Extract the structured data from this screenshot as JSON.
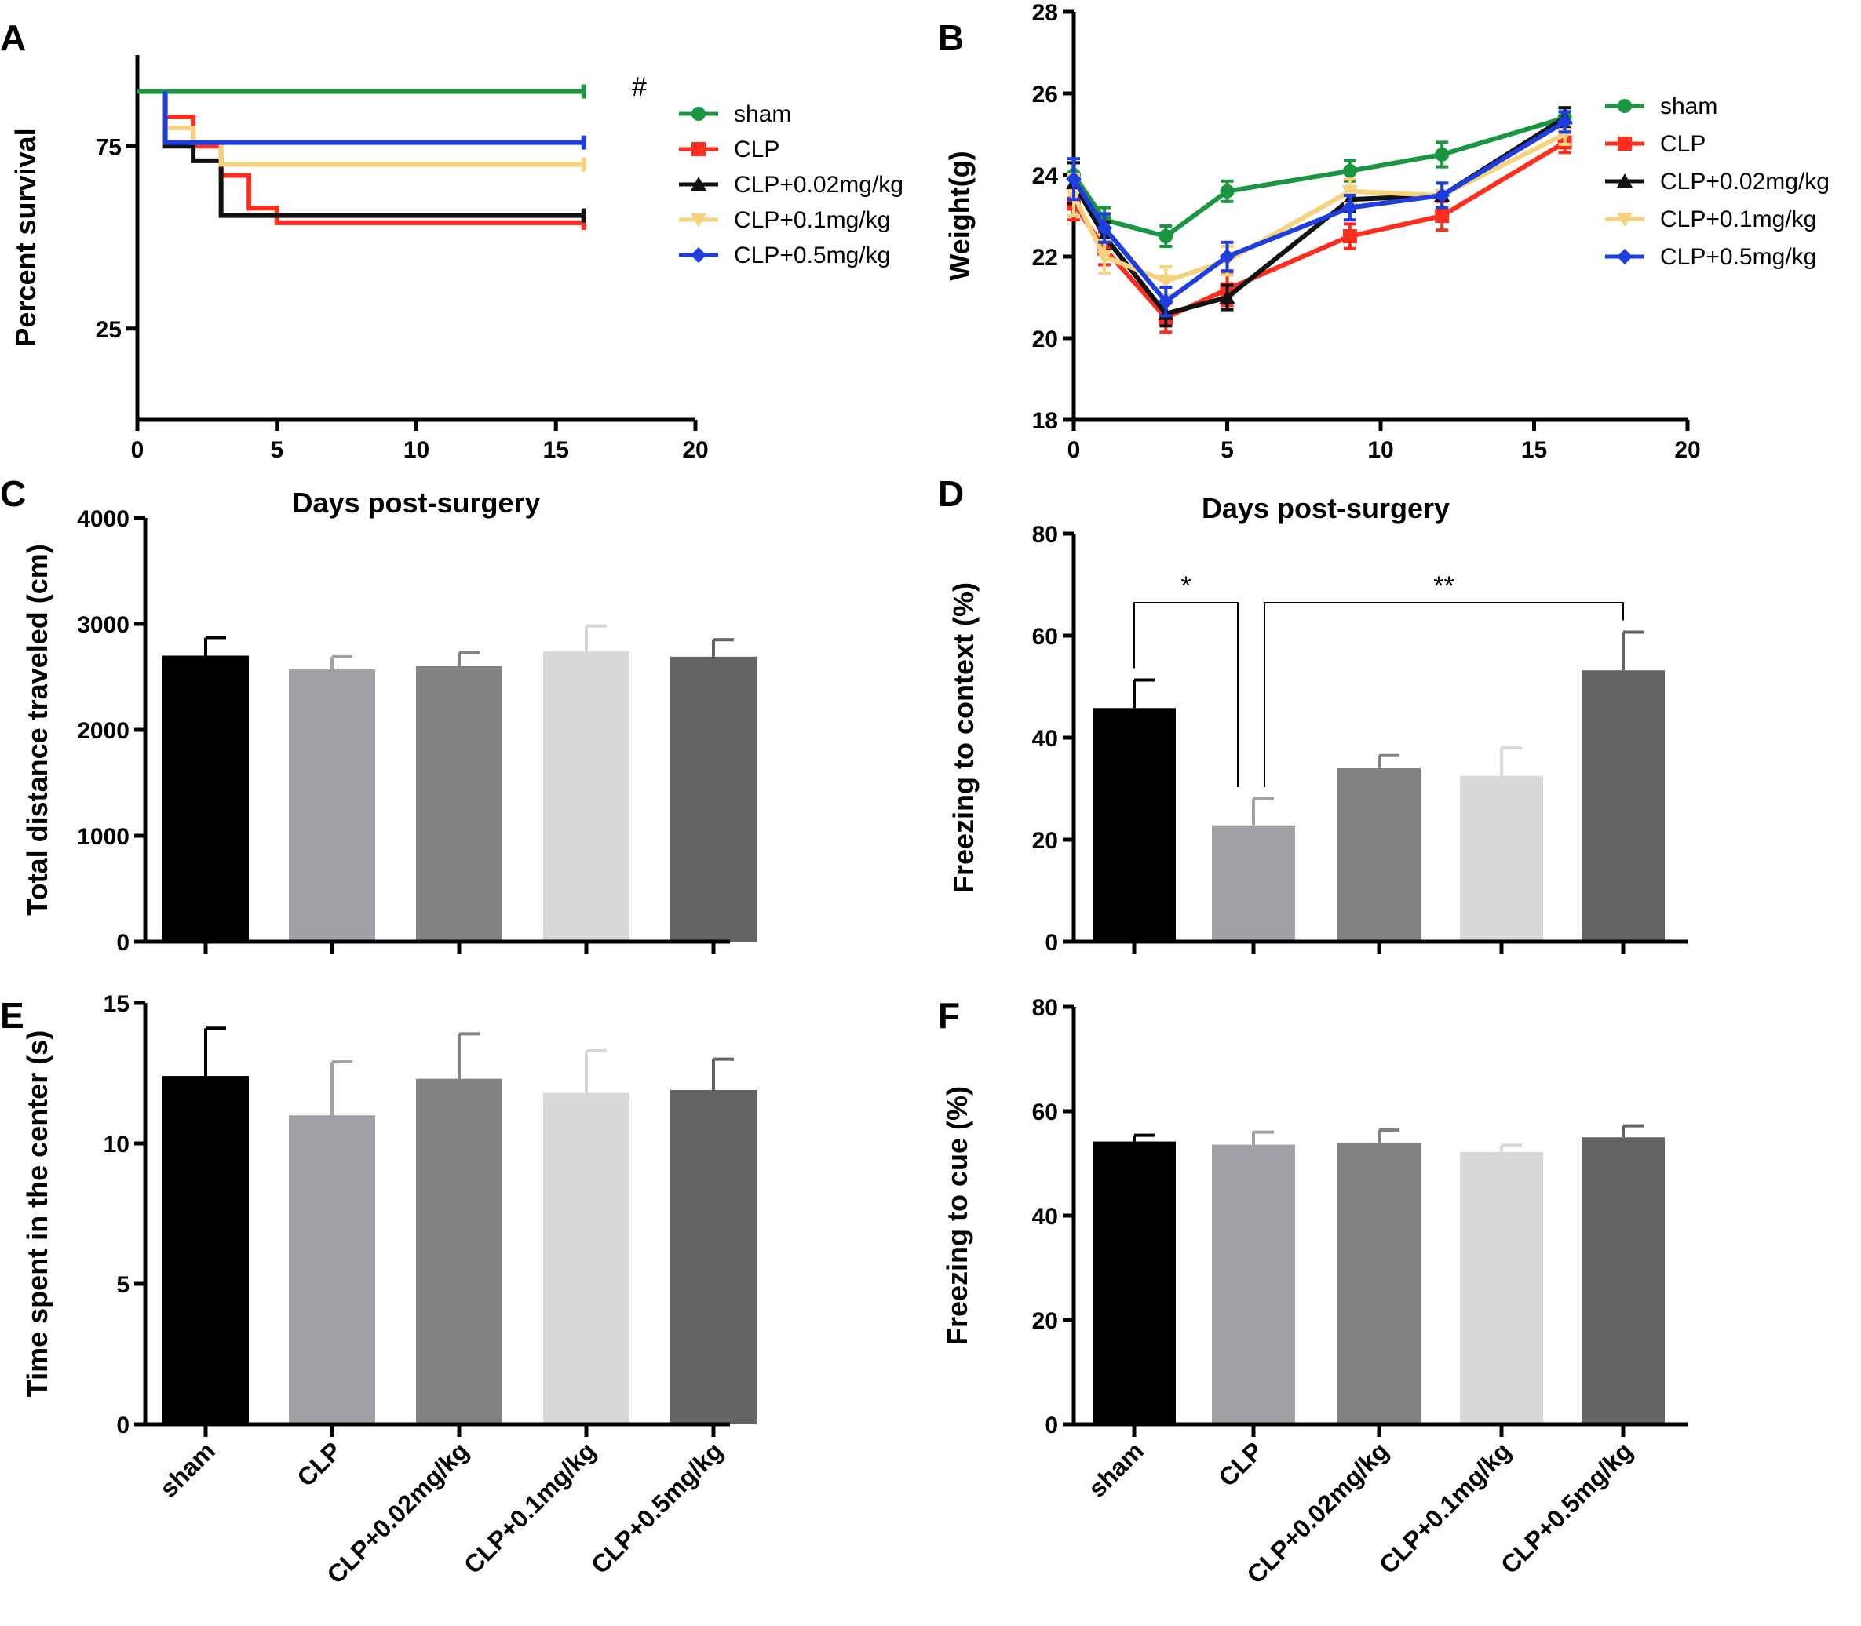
{
  "chart_data": [
    {
      "panel": "A",
      "type": "line",
      "subtype": "kaplan-meier survival",
      "xlabel": "Days post-surgery",
      "ylabel": "Percent survival",
      "xlim": [
        0,
        20
      ],
      "ylim": [
        0,
        100
      ],
      "xticks": [
        "0",
        "5",
        "10",
        "15",
        "20"
      ],
      "yticks": [
        {
          "value": 25,
          "label": "25"
        },
        {
          "value": 75,
          "label": "75"
        }
      ],
      "annotation": "#",
      "series": [
        {
          "name": "sham",
          "color": "#1a9641",
          "marker": "circle",
          "steps": [
            [
              0,
              90
            ],
            [
              16,
              90
            ]
          ]
        },
        {
          "name": "CLP",
          "color": "#ff2d1e",
          "marker": "square",
          "steps": [
            [
              1,
              90
            ],
            [
              1,
              83
            ],
            [
              2,
              83
            ],
            [
              2,
              75
            ],
            [
              3,
              75
            ],
            [
              3,
              67
            ],
            [
              4,
              67
            ],
            [
              4,
              58
            ],
            [
              5,
              58
            ],
            [
              5,
              54
            ],
            [
              16,
              54
            ]
          ]
        },
        {
          "name": "CLP+0.02mg/kg",
          "color": "#111111",
          "marker": "triangle",
          "steps": [
            [
              1,
              90
            ],
            [
              1,
              75
            ],
            [
              2,
              75
            ],
            [
              2,
              71
            ],
            [
              3,
              71
            ],
            [
              3,
              56
            ],
            [
              6,
              56
            ],
            [
              16,
              56
            ]
          ]
        },
        {
          "name": "CLP+0.1mg/kg",
          "color": "#f7d27c",
          "marker": "triangle-down",
          "steps": [
            [
              1,
              90
            ],
            [
              1,
              80
            ],
            [
              2,
              80
            ],
            [
              2,
              76
            ],
            [
              3,
              76
            ],
            [
              3,
              70
            ],
            [
              16,
              70
            ]
          ]
        },
        {
          "name": "CLP+0.5mg/kg",
          "color": "#1f3ee0",
          "marker": "diamond",
          "steps": [
            [
              1,
              90
            ],
            [
              1,
              76
            ],
            [
              16,
              76
            ]
          ]
        }
      ]
    },
    {
      "panel": "B",
      "type": "line",
      "xlabel": "Days post-surgery",
      "ylabel": "Weight(g)",
      "xlim": [
        0,
        20
      ],
      "ylim": [
        18,
        28
      ],
      "xticks": [
        "0",
        "5",
        "10",
        "15",
        "20"
      ],
      "yticks": [
        "18",
        "20",
        "22",
        "24",
        "26",
        "28"
      ],
      "x": [
        0,
        1,
        3,
        5,
        9,
        12,
        16
      ],
      "series": [
        {
          "name": "sham",
          "color": "#1a9641",
          "marker": "circle",
          "values": [
            24.0,
            22.9,
            22.5,
            23.6,
            24.1,
            24.5,
            25.4
          ],
          "errors": [
            0.3,
            0.3,
            0.25,
            0.25,
            0.25,
            0.3,
            0.25
          ]
        },
        {
          "name": "CLP",
          "color": "#ff2d1e",
          "marker": "square",
          "values": [
            23.3,
            22.2,
            20.5,
            21.2,
            22.5,
            23.0,
            24.8
          ],
          "errors": [
            0.4,
            0.4,
            0.35,
            0.4,
            0.3,
            0.35,
            0.25
          ]
        },
        {
          "name": "CLP+0.02mg/kg",
          "color": "#111111",
          "marker": "triangle",
          "values": [
            23.8,
            22.5,
            20.6,
            21.0,
            23.4,
            23.5,
            25.4
          ],
          "errors": [
            0.5,
            0.35,
            0.3,
            0.3,
            0.3,
            0.3,
            0.25
          ]
        },
        {
          "name": "CLP+0.1mg/kg",
          "color": "#f7d27c",
          "marker": "triangle-down",
          "values": [
            23.5,
            22.0,
            21.4,
            21.9,
            23.6,
            23.5,
            25.0
          ],
          "errors": [
            0.5,
            0.4,
            0.35,
            0.35,
            0.3,
            0.3,
            0.25
          ]
        },
        {
          "name": "CLP+0.5mg/kg",
          "color": "#1f3ee0",
          "marker": "diamond",
          "values": [
            23.9,
            22.7,
            20.9,
            22.0,
            23.2,
            23.5,
            25.3
          ],
          "errors": [
            0.5,
            0.35,
            0.35,
            0.35,
            0.3,
            0.3,
            0.25
          ]
        }
      ]
    },
    {
      "panel": "C",
      "type": "bar",
      "ylabel": "Total distance traveled (cm)",
      "ylim": [
        0,
        4000
      ],
      "yticks": [
        "0",
        "1000",
        "2000",
        "3000",
        "4000"
      ],
      "categories": [
        "sham",
        "CLP",
        "CLP+0.02mg/kg",
        "CLP+0.1mg/kg",
        "CLP+0.5mg/kg"
      ],
      "values": [
        2700,
        2570,
        2600,
        2740,
        2690
      ],
      "errors": [
        170,
        120,
        130,
        240,
        160
      ]
    },
    {
      "panel": "D",
      "type": "bar",
      "ylabel": "Freezing to context (%)",
      "ylim": [
        0,
        80
      ],
      "yticks": [
        "0",
        "20",
        "40",
        "60",
        "80"
      ],
      "categories": [
        "sham",
        "CLP",
        "CLP+0.02mg/kg",
        "CLP+0.1mg/kg",
        "CLP+0.5mg/kg"
      ],
      "values": [
        45.8,
        22.8,
        34.0,
        32.5,
        53.2
      ],
      "errors": [
        5.5,
        5.2,
        2.5,
        5.5,
        7.5
      ],
      "significance": [
        {
          "from": 0,
          "to": 1,
          "label": "*"
        },
        {
          "from": 1,
          "to": 4,
          "label": "**"
        }
      ]
    },
    {
      "panel": "E",
      "type": "bar",
      "ylabel": "Time spent in the center (s)",
      "ylim": [
        0,
        15
      ],
      "yticks": [
        "0",
        "5",
        "10",
        "15"
      ],
      "categories": [
        "sham",
        "CLP",
        "CLP+0.02mg/kg",
        "CLP+0.1mg/kg",
        "CLP+0.5mg/kg"
      ],
      "values": [
        12.4,
        11.0,
        12.3,
        11.8,
        11.9
      ],
      "errors": [
        1.7,
        1.9,
        1.6,
        1.5,
        1.1
      ]
    },
    {
      "panel": "F",
      "type": "bar",
      "ylabel": "Freezing to cue (%)",
      "ylim": [
        0,
        80
      ],
      "yticks": [
        "0",
        "20",
        "40",
        "60",
        "80"
      ],
      "categories": [
        "sham",
        "CLP",
        "CLP+0.02mg/kg",
        "CLP+0.1mg/kg",
        "CLP+0.5mg/kg"
      ],
      "values": [
        54.2,
        53.6,
        54.0,
        52.2,
        55.0
      ],
      "errors": [
        1.2,
        2.4,
        2.4,
        1.3,
        2.2
      ]
    }
  ],
  "bar_colors": [
    "#000000",
    "#a2a2a6",
    "#828282",
    "#d8d8d8",
    "#636363"
  ]
}
